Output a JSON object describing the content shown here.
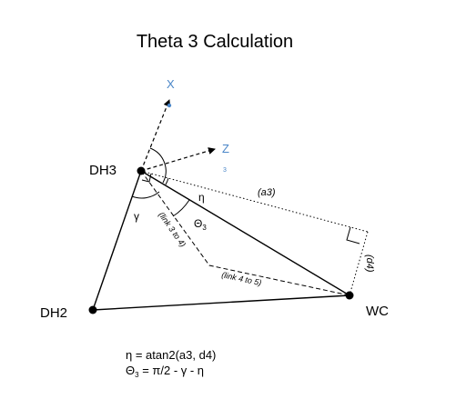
{
  "title": "Theta 3 Calculation",
  "colors": {
    "axis": "#4a86c8",
    "ink": "#000000"
  },
  "nodes": {
    "dh3": "DH3",
    "dh2": "DH2",
    "wc": "WC"
  },
  "axes": {
    "x": "X",
    "z": "Z",
    "z_sub": "3"
  },
  "edges": {
    "a3": "(a3)",
    "d4": "(d4)",
    "link_3_4": "(link 3 to 4)",
    "link_4_5": "(link 4 to 5)"
  },
  "angles": {
    "eta": "η",
    "gamma": "γ",
    "theta_symbol": "Θ",
    "theta_sub": "3"
  },
  "formulas": {
    "eta_formula": "η = atan2(a3, d4)",
    "theta_prefix": "Θ",
    "theta_sub": "3",
    "theta_rest": " = π/2 - γ - η"
  }
}
